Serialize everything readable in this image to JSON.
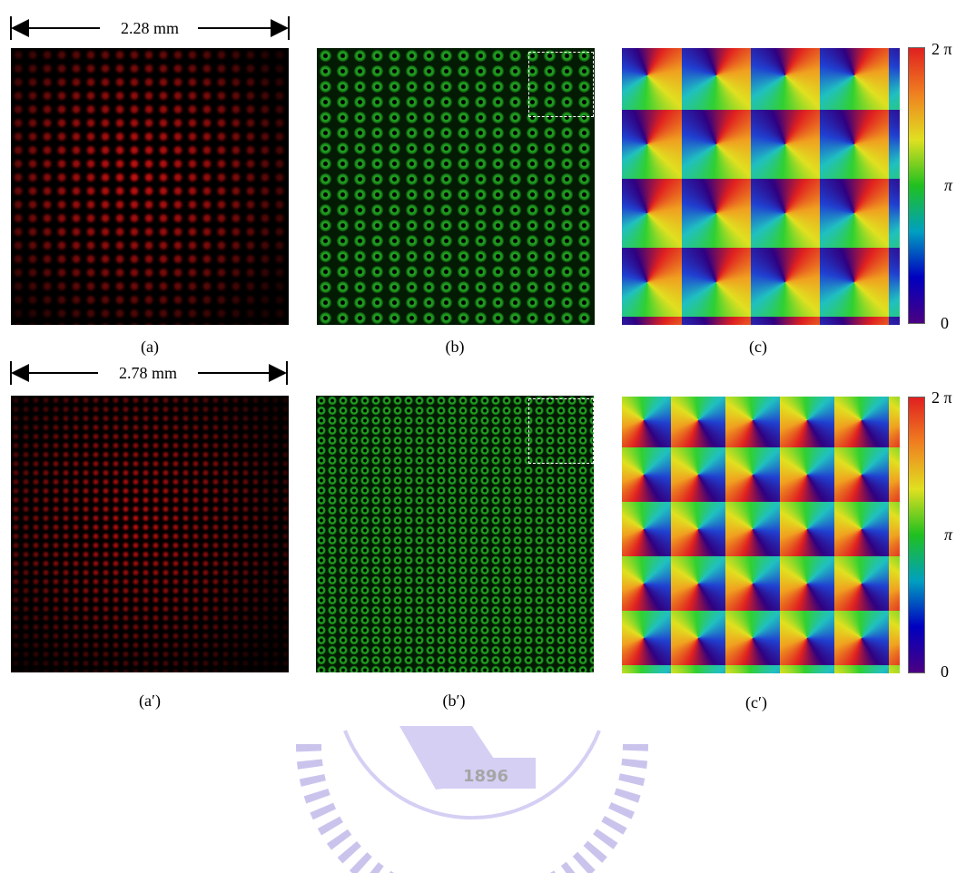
{
  "rows": [
    {
      "scale_label": "2.28 mm",
      "panels": [
        "(a)",
        "(b)",
        "(c)"
      ],
      "colorbar": {
        "top": "2 π",
        "middle": "π",
        "bottom": "0"
      }
    },
    {
      "scale_label": "2.78 mm",
      "panels": [
        "(a′)",
        "(b′)",
        "(c′)"
      ],
      "colorbar": {
        "top": "2 π",
        "middle": "π",
        "bottom": "0"
      }
    }
  ],
  "watermark": "1896"
}
